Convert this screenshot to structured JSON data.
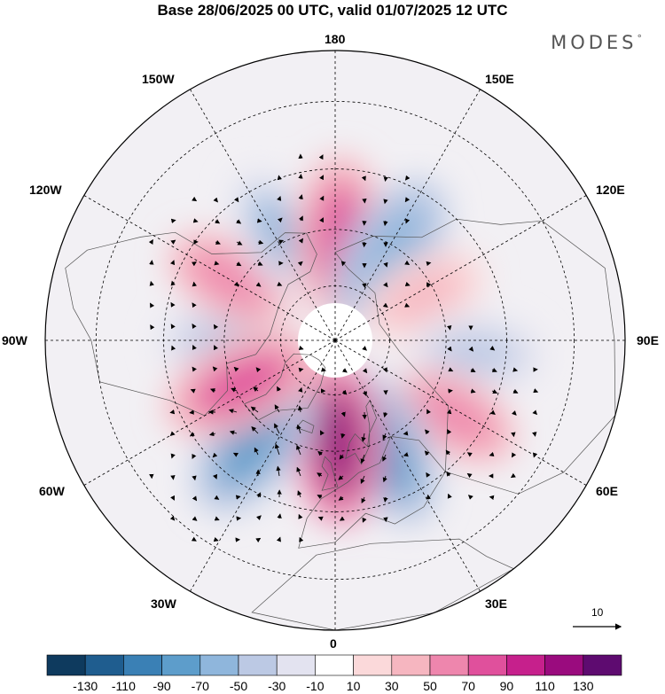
{
  "title": "Base 28/06/2025 00 UTC, valid 01/07/2025 12 UTC",
  "brand": "MODES",
  "brand_mark": "°",
  "longitude_labels": {
    "lon_180": "180",
    "lon_150e": "150E",
    "lon_120e": "120E",
    "lon_90e": "90E",
    "lon_60e": "60E",
    "lon_30e": "30E",
    "lon_0": "0",
    "lon_30w": "30W",
    "lon_60w": "60W",
    "lon_90w": "90W",
    "lon_120w": "120W",
    "lon_150w": "150W"
  },
  "vector_reference": {
    "label": "10",
    "value": 10
  },
  "colorbar": {
    "colors": [
      "#0e3a5e",
      "#1f5d8f",
      "#3a80b5",
      "#5d9dcb",
      "#8fb6dc",
      "#bcc9e4",
      "#e3e3f0",
      "#ffffff",
      "#fbd9da",
      "#f6b6c0",
      "#ee86ad",
      "#e0509c",
      "#c6208c",
      "#9a0b7e",
      "#5e0b70"
    ],
    "ticks": [
      "-130",
      "-110",
      "-90",
      "-70",
      "-50",
      "-30",
      "-10",
      "10",
      "30",
      "50",
      "70",
      "90",
      "110",
      "130"
    ]
  },
  "anomaly_cells": [
    {
      "lon": -90,
      "lat": 60,
      "value": -40
    },
    {
      "lon": -120,
      "lat": 57,
      "value": 60
    },
    {
      "lon": -152,
      "lat": 57,
      "value": -60
    },
    {
      "lon": 178,
      "lat": 62,
      "value": 80
    },
    {
      "lon": 148,
      "lat": 62,
      "value": -70
    },
    {
      "lon": 117,
      "lat": 63,
      "value": 40
    },
    {
      "lon": 85,
      "lat": 52,
      "value": -40
    },
    {
      "lon": 58,
      "lat": 52,
      "value": 60
    },
    {
      "lon": 25,
      "lat": 58,
      "value": -90
    },
    {
      "lon": 2,
      "lat": 62,
      "value": 120
    },
    {
      "lon": -38,
      "lat": 55,
      "value": -80
    },
    {
      "lon": -65,
      "lat": 62,
      "value": 70
    }
  ]
}
